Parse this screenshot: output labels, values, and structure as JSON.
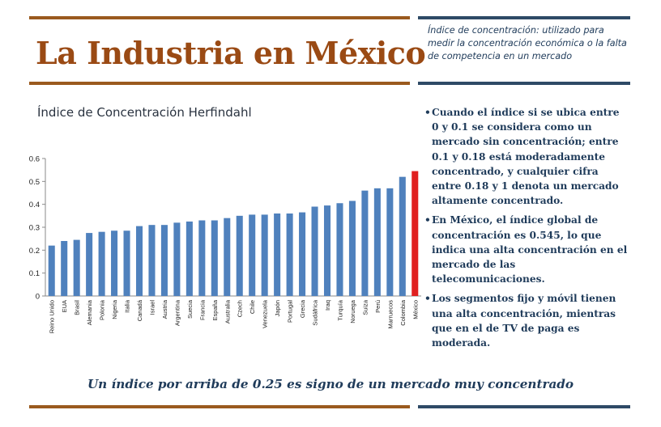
{
  "header": {
    "title": "La Industria en México",
    "definition": "Índice de concentración: utilizado para medir la concentración económica o la falta de competencia en un mercado"
  },
  "chart": {
    "title": "Índice de Concentración Herfindahl"
  },
  "bullets": [
    "Cuando el índice si se ubica entre 0 y 0.1 se considera como un mercado sin concentración; entre 0.1 y 0.18 está moderadamente concentrado, y cualquier cifra entre 0.18 y 1 denota un mercado altamente concentrado.",
    "En México, el índice global de concentración es 0.545, lo que indica una alta concentración en el mercado de las telecomunicaciones.",
    "Los segmentos fijo y móvil tienen una alta concentración, mientras que en el de TV de paga es moderada."
  ],
  "footnote": "Un índice por arriba de 0.25 es signo de un mercado muy concentrado",
  "colors": {
    "bar": "#4f81bd",
    "highlight_bar": "#e02020",
    "title": "#9a4a14",
    "text": "#1f3b5a",
    "rule_brown": "#9a5a1e",
    "rule_navy": "#2e4a66"
  },
  "chart_data": {
    "type": "bar",
    "categories": [
      "Reino Unido",
      "EUA",
      "Brasil",
      "Alemania",
      "Polonia",
      "Nigeria",
      "Italia",
      "Canadá",
      "Israel",
      "Austria",
      "Argentina",
      "Suecia",
      "Francia",
      "España",
      "Australia",
      "Czech",
      "Chile",
      "Venezuela",
      "Japón",
      "Portugal",
      "Grecia",
      "Sudáfrica",
      "Iraq",
      "Turquía",
      "Noruega",
      "Suiza",
      "Perú",
      "Marruecos",
      "Colombia",
      "México"
    ],
    "values": [
      0.22,
      0.24,
      0.245,
      0.275,
      0.28,
      0.285,
      0.285,
      0.305,
      0.31,
      0.31,
      0.32,
      0.325,
      0.33,
      0.33,
      0.34,
      0.35,
      0.355,
      0.355,
      0.36,
      0.36,
      0.365,
      0.39,
      0.395,
      0.405,
      0.415,
      0.46,
      0.47,
      0.47,
      0.52,
      0.545
    ],
    "highlight_index": 29,
    "title": "",
    "xlabel": "",
    "ylabel": "",
    "ylim": [
      0,
      0.6
    ],
    "yticks": [
      "0",
      "0.1",
      "0.2",
      "0.3",
      "0.4",
      "0.5",
      "0.6"
    ],
    "grid": false,
    "legend": "none"
  }
}
